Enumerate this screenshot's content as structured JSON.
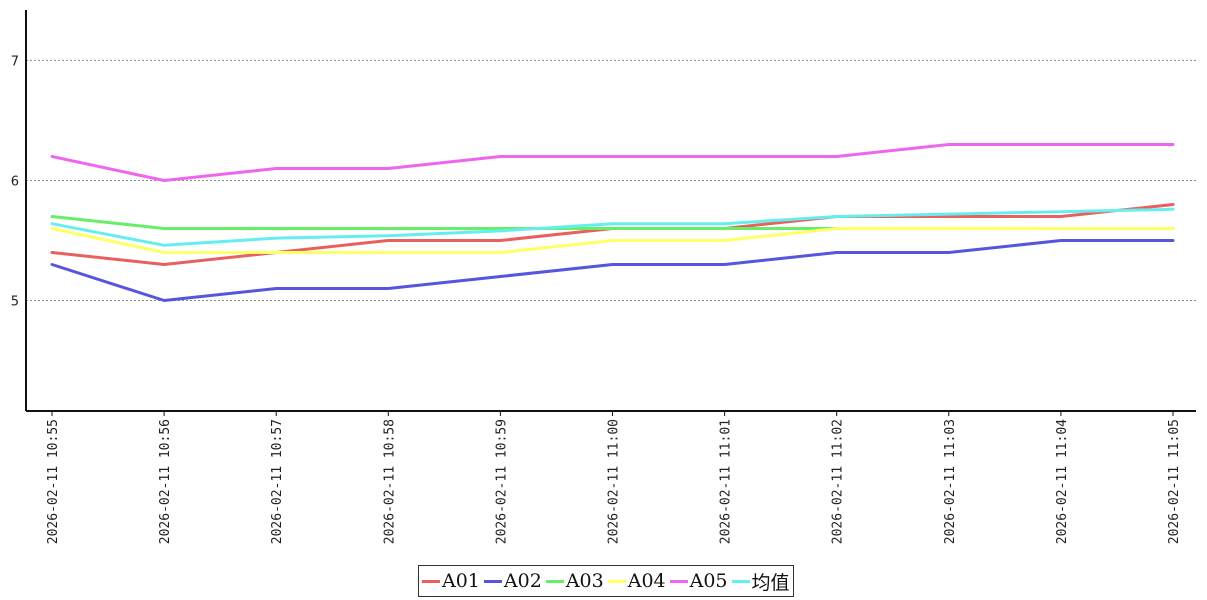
{
  "chart_data": {
    "type": "line",
    "title": "",
    "xlabel": "",
    "ylabel": "",
    "x": [
      "2026-02-11 10:55",
      "2026-02-11 10:56",
      "2026-02-11 10:57",
      "2026-02-11 10:58",
      "2026-02-11 10:59",
      "2026-02-11 11:00",
      "2026-02-11 11:01",
      "2026-02-11 11:02",
      "2026-02-11 11:03",
      "2026-02-11 11:04",
      "2026-02-11 11:05"
    ],
    "ylim": [
      4.08,
      7.42
    ],
    "yticks": [
      "5",
      "6",
      "7"
    ],
    "grid": "horizontal dotted",
    "legend_position": "bottom-center",
    "series": [
      {
        "name": "A01",
        "color": "#e8605e",
        "values": [
          5.4,
          5.3,
          5.4,
          5.5,
          5.5,
          5.6,
          5.6,
          5.7,
          5.7,
          5.7,
          5.8
        ]
      },
      {
        "name": "A02",
        "color": "#5555dd",
        "values": [
          5.3,
          5.0,
          5.1,
          5.1,
          5.2,
          5.3,
          5.3,
          5.4,
          5.4,
          5.5,
          5.5
        ]
      },
      {
        "name": "A03",
        "color": "#66ee66",
        "values": [
          5.7,
          5.6,
          5.6,
          5.6,
          5.6,
          5.6,
          5.6,
          5.6,
          5.6,
          5.6,
          5.6
        ]
      },
      {
        "name": "A04",
        "color": "#ffff66",
        "values": [
          5.6,
          5.4,
          5.4,
          5.4,
          5.4,
          5.5,
          5.5,
          5.6,
          5.6,
          5.6,
          5.6
        ]
      },
      {
        "name": "A05",
        "color": "#ee66ee",
        "values": [
          6.2,
          6.0,
          6.1,
          6.1,
          6.2,
          6.2,
          6.2,
          6.2,
          6.3,
          6.3,
          6.3
        ]
      },
      {
        "name": "均值",
        "color": "#66eeee",
        "values": [
          5.64,
          5.46,
          5.52,
          5.54,
          5.58,
          5.64,
          5.64,
          5.7,
          5.72,
          5.74,
          5.76
        ]
      }
    ]
  }
}
